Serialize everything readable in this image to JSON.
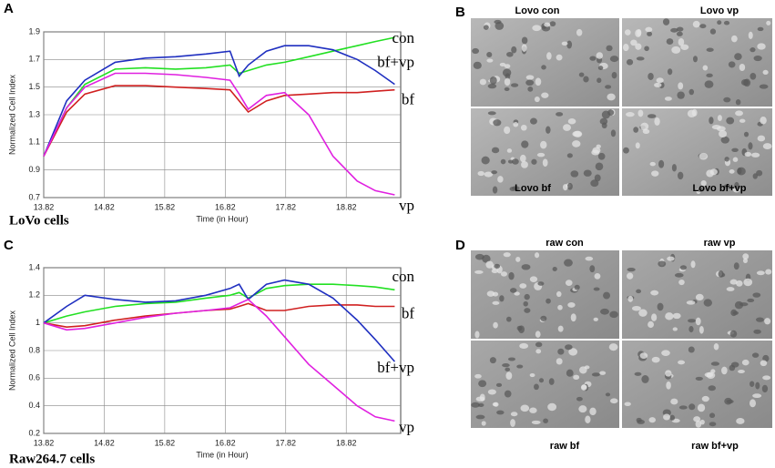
{
  "chart_data": [
    {
      "type": "line",
      "panel": "A",
      "caption": "LoVo cells",
      "ylabel": "Normalized Cell Index",
      "xlabel": "Time (in Hour)",
      "x": [
        13.82,
        14.2,
        14.5,
        15.0,
        15.5,
        16.0,
        16.5,
        16.9,
        17.05,
        17.2,
        17.5,
        17.8,
        18.2,
        18.6,
        19.0,
        19.3,
        19.62
      ],
      "xlim": [
        13.82,
        19.72
      ],
      "xticks": [
        13.82,
        14.82,
        15.82,
        16.82,
        17.82,
        18.82
      ],
      "ylim": [
        0.7,
        1.9
      ],
      "yticks": [
        0.7,
        0.9,
        1.1,
        1.3,
        1.5,
        1.7,
        1.9
      ],
      "grid": true,
      "series": [
        {
          "name": "con",
          "color": "#22e022",
          "values": [
            1.0,
            1.35,
            1.52,
            1.63,
            1.64,
            1.63,
            1.64,
            1.66,
            1.6,
            1.62,
            1.66,
            1.68,
            1.72,
            1.76,
            1.8,
            1.83,
            1.86
          ]
        },
        {
          "name": "bf+vp",
          "color": "#1f2fc0",
          "values": [
            1.0,
            1.4,
            1.55,
            1.68,
            1.71,
            1.72,
            1.74,
            1.76,
            1.58,
            1.66,
            1.76,
            1.8,
            1.8,
            1.77,
            1.7,
            1.62,
            1.52
          ]
        },
        {
          "name": "bf",
          "color": "#d02020",
          "values": [
            1.0,
            1.32,
            1.45,
            1.51,
            1.51,
            1.5,
            1.49,
            1.48,
            1.4,
            1.32,
            1.4,
            1.44,
            1.45,
            1.46,
            1.46,
            1.47,
            1.48
          ]
        },
        {
          "name": "vp",
          "color": "#e020e0",
          "values": [
            1.0,
            1.35,
            1.5,
            1.6,
            1.6,
            1.59,
            1.57,
            1.55,
            1.45,
            1.34,
            1.44,
            1.46,
            1.3,
            1.0,
            0.82,
            0.75,
            0.72
          ]
        }
      ]
    },
    {
      "type": "line",
      "panel": "C",
      "caption": "Raw264.7 cells",
      "ylabel": "Normalized Cell Index",
      "xlabel": "Time (in Hour)",
      "x": [
        13.82,
        14.2,
        14.5,
        15.0,
        15.5,
        16.0,
        16.5,
        16.9,
        17.05,
        17.2,
        17.5,
        17.8,
        18.2,
        18.6,
        19.0,
        19.3,
        19.62
      ],
      "xlim": [
        13.82,
        19.72
      ],
      "xticks": [
        13.82,
        14.82,
        15.82,
        16.82,
        17.82,
        18.82
      ],
      "ylim": [
        0.2,
        1.4
      ],
      "yticks": [
        0.2,
        0.4,
        0.6,
        0.8,
        1.0,
        1.2,
        1.4
      ],
      "grid": true,
      "series": [
        {
          "name": "con",
          "color": "#22e022",
          "values": [
            1.0,
            1.05,
            1.08,
            1.12,
            1.14,
            1.15,
            1.18,
            1.2,
            1.22,
            1.18,
            1.25,
            1.27,
            1.28,
            1.28,
            1.27,
            1.26,
            1.24
          ]
        },
        {
          "name": "bf",
          "color": "#d02020",
          "values": [
            1.0,
            0.97,
            0.98,
            1.02,
            1.05,
            1.07,
            1.09,
            1.1,
            1.12,
            1.14,
            1.09,
            1.09,
            1.12,
            1.13,
            1.13,
            1.12,
            1.12
          ]
        },
        {
          "name": "bf+vp",
          "color": "#1f2fc0",
          "values": [
            1.0,
            1.12,
            1.2,
            1.17,
            1.15,
            1.16,
            1.2,
            1.25,
            1.28,
            1.17,
            1.28,
            1.31,
            1.28,
            1.18,
            1.02,
            0.88,
            0.72
          ]
        },
        {
          "name": "vp",
          "color": "#e020e0",
          "values": [
            1.0,
            0.95,
            0.96,
            1.0,
            1.04,
            1.07,
            1.09,
            1.11,
            1.14,
            1.17,
            1.05,
            0.9,
            0.7,
            0.55,
            0.4,
            0.32,
            0.29
          ]
        }
      ]
    }
  ],
  "image_panels": [
    {
      "panel": "B",
      "tiles": [
        "Lovo con",
        "Lovo vp",
        "Lovo bf",
        "Lovo bf+vp"
      ]
    },
    {
      "panel": "D",
      "tiles": [
        "raw con",
        "raw vp",
        "raw bf",
        "raw bf+vp"
      ]
    }
  ]
}
